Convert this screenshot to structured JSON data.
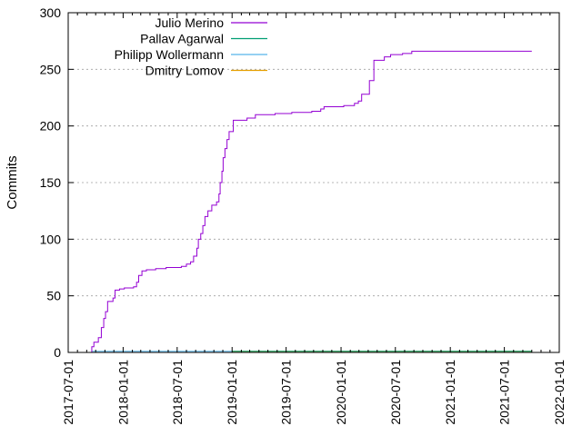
{
  "chart_data": {
    "type": "line",
    "xlabel": "",
    "ylabel": "Commits",
    "xlim": [
      "2017-07-01",
      "2022-01-01"
    ],
    "ylim": [
      0,
      300
    ],
    "x_ticks": [
      "2017-07-01",
      "2018-01-01",
      "2018-07-01",
      "2019-01-01",
      "2019-07-01",
      "2020-01-01",
      "2020-07-01",
      "2021-01-01",
      "2021-07-01",
      "2022-01-01"
    ],
    "y_ticks": [
      0,
      50,
      100,
      150,
      200,
      250,
      300
    ],
    "grid": "horizontal dotted",
    "legend_position": "top-left",
    "series": [
      {
        "name": "Julio Merino",
        "color": "#9400d3",
        "step": true,
        "points": [
          [
            "2017-09-12",
            0
          ],
          [
            "2017-09-18",
            5
          ],
          [
            "2017-09-25",
            9
          ],
          [
            "2017-10-10",
            13
          ],
          [
            "2017-10-20",
            22
          ],
          [
            "2017-10-28",
            30
          ],
          [
            "2017-11-03",
            36
          ],
          [
            "2017-11-10",
            45
          ],
          [
            "2017-11-28",
            48
          ],
          [
            "2017-12-05",
            55
          ],
          [
            "2017-12-20",
            56
          ],
          [
            "2018-01-05",
            57
          ],
          [
            "2018-02-05",
            58
          ],
          [
            "2018-02-15",
            62
          ],
          [
            "2018-02-22",
            68
          ],
          [
            "2018-03-05",
            72
          ],
          [
            "2018-03-20",
            73
          ],
          [
            "2018-04-20",
            74
          ],
          [
            "2018-05-25",
            75
          ],
          [
            "2018-07-15",
            76
          ],
          [
            "2018-08-01",
            78
          ],
          [
            "2018-08-15",
            80
          ],
          [
            "2018-08-25",
            85
          ],
          [
            "2018-09-05",
            92
          ],
          [
            "2018-09-10",
            100
          ],
          [
            "2018-09-18",
            105
          ],
          [
            "2018-09-25",
            112
          ],
          [
            "2018-10-02",
            120
          ],
          [
            "2018-10-12",
            125
          ],
          [
            "2018-10-25",
            130
          ],
          [
            "2018-11-10",
            133
          ],
          [
            "2018-11-18",
            140
          ],
          [
            "2018-11-22",
            150
          ],
          [
            "2018-11-28",
            160
          ],
          [
            "2018-12-02",
            172
          ],
          [
            "2018-12-08",
            180
          ],
          [
            "2018-12-15",
            188
          ],
          [
            "2018-12-22",
            195
          ],
          [
            "2019-01-05",
            205
          ],
          [
            "2019-02-20",
            207
          ],
          [
            "2019-03-20",
            210
          ],
          [
            "2019-05-25",
            211
          ],
          [
            "2019-07-20",
            212
          ],
          [
            "2019-09-25",
            213
          ],
          [
            "2019-10-25",
            215
          ],
          [
            "2019-11-05",
            217
          ],
          [
            "2020-01-10",
            218
          ],
          [
            "2020-02-15",
            220
          ],
          [
            "2020-02-28",
            222
          ],
          [
            "2020-03-10",
            228
          ],
          [
            "2020-04-05",
            240
          ],
          [
            "2020-04-20",
            258
          ],
          [
            "2020-05-25",
            261
          ],
          [
            "2020-06-15",
            263
          ],
          [
            "2020-07-25",
            264
          ],
          [
            "2020-08-25",
            266
          ],
          [
            "2021-10-01",
            266
          ]
        ]
      },
      {
        "name": "Pallav Agarwal",
        "color": "#009e73",
        "step": true,
        "points": [
          [
            "2019-01-01",
            1
          ],
          [
            "2021-10-01",
            1
          ]
        ]
      },
      {
        "name": "Philipp Wollermann",
        "color": "#56b4e9",
        "step": true,
        "points": [
          [
            "2017-09-20",
            1
          ],
          [
            "2019-01-01",
            1
          ]
        ]
      },
      {
        "name": "Dmitry Lomov",
        "color": "#e69f00",
        "step": true,
        "points": [
          [
            "2019-01-01",
            1
          ],
          [
            "2021-10-01",
            1
          ]
        ]
      }
    ]
  }
}
